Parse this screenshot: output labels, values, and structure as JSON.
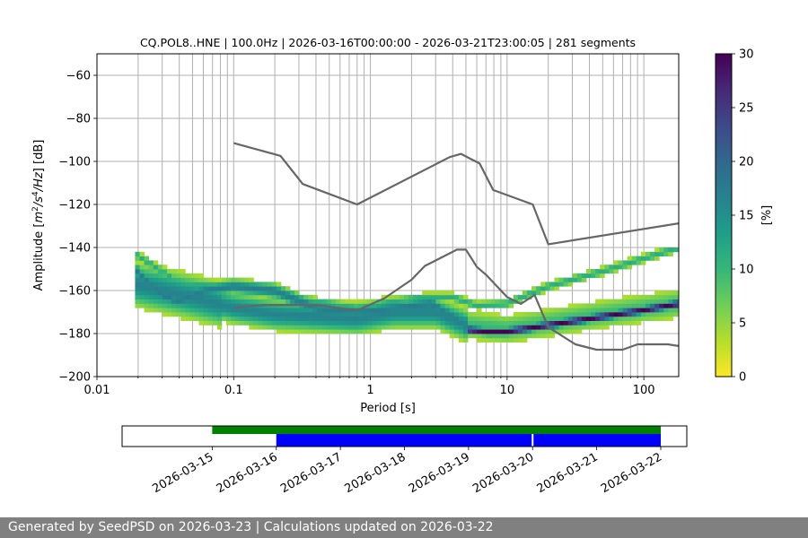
{
  "chart_data": [
    {
      "type": "heatmap",
      "title": "CQ.POL8..HNE | 100.0Hz | 2026-03-16T00:00:00 - 2026-03-21T23:00:05 | 281 segments",
      "xlabel": "Period [s]",
      "ylabel_parts": [
        "Amplitude [",
        "m",
        "2",
        "/",
        "s",
        "4",
        "/",
        "Hz",
        "] [dB]"
      ],
      "xscale": "log",
      "xlim": [
        0.01,
        180
      ],
      "ylim": [
        -200,
        -50
      ],
      "x_ticks": [
        {
          "value": 0.01,
          "label": "0.01"
        },
        {
          "value": 0.1,
          "label": "0.1"
        },
        {
          "value": 1,
          "label": "1"
        },
        {
          "value": 10,
          "label": "10"
        },
        {
          "value": 100,
          "label": "100"
        }
      ],
      "y_ticks": [
        {
          "value": -60,
          "label": "−60"
        },
        {
          "value": -80,
          "label": "−80"
        },
        {
          "value": -100,
          "label": "−100"
        },
        {
          "value": -120,
          "label": "−120"
        },
        {
          "value": -140,
          "label": "−140"
        },
        {
          "value": -160,
          "label": "−160"
        },
        {
          "value": -180,
          "label": "−180"
        },
        {
          "value": -200,
          "label": "−200"
        }
      ],
      "grid": true,
      "colorbar": {
        "label": "[%]",
        "range": [
          0,
          30
        ],
        "colormap": "viridis_r",
        "ticks": [
          {
            "value": 0,
            "label": "0"
          },
          {
            "value": 5,
            "label": "5"
          },
          {
            "value": 10,
            "label": "10"
          },
          {
            "value": 15,
            "label": "15"
          },
          {
            "value": 20,
            "label": "20"
          },
          {
            "value": 25,
            "label": "25"
          },
          {
            "value": 30,
            "label": "30"
          }
        ]
      },
      "noise_models": [
        {
          "points": [
            [
              0.1,
              -91.5
            ],
            [
              0.22,
              -97.4
            ],
            [
              0.32,
              -110.5
            ],
            [
              0.8,
              -120
            ],
            [
              3.8,
              -98
            ],
            [
              4.6,
              -96.5
            ],
            [
              6.3,
              -101
            ],
            [
              7.9,
              -113.3
            ],
            [
              15.4,
              -120
            ],
            [
              20,
              -138.5
            ],
            [
              180,
              -128.8
            ]
          ]
        },
        {
          "points": [
            [
              0.1,
              -168
            ],
            [
              0.17,
              -166.7
            ],
            [
              0.4,
              -166.7
            ],
            [
              0.8,
              -169.2
            ],
            [
              1.26,
              -163.7
            ],
            [
              2,
              -155
            ],
            [
              2.5,
              -148.6
            ],
            [
              4.3,
              -141
            ],
            [
              5,
              -141
            ],
            [
              6,
              -149
            ],
            [
              7.1,
              -153
            ],
            [
              10,
              -163
            ],
            [
              12.6,
              -166.2
            ],
            [
              15.9,
              -162.1
            ],
            [
              20,
              -177
            ],
            [
              31.6,
              -185
            ],
            [
              45,
              -187.5
            ],
            [
              70,
              -187.5
            ],
            [
              90,
              -185
            ],
            [
              150,
              -185
            ],
            [
              180,
              -185.8
            ]
          ]
        }
      ],
      "distribution": {
        "bin_db": 2,
        "columns_per_decade": 30,
        "period_range": [
          0.019,
          180
        ],
        "ridges": [
          {
            "name": "background",
            "points": [
              [
                0.019,
                -157
              ],
              [
                0.05,
                -163
              ],
              [
                0.1,
                -168
              ],
              [
                0.2,
                -171
              ],
              [
                0.4,
                -172
              ],
              [
                0.8,
                -173
              ],
              [
                1.5,
                -170
              ],
              [
                3,
                -170
              ],
              [
                5,
                -176
              ],
              [
                10,
                -178
              ],
              [
                20,
                -175
              ],
              [
                50,
                -171
              ],
              [
                180,
                -166
              ]
            ]
          },
          {
            "name": "primary",
            "points": [
              [
                0.019,
                -150
              ],
              [
                0.025,
                -158
              ],
              [
                0.03,
                -162
              ],
              [
                0.04,
                -165
              ],
              [
                0.06,
                -160
              ],
              [
                0.1,
                -158
              ],
              [
                0.2,
                -160
              ],
              [
                0.4,
                -168
              ],
              [
                0.8,
                -170
              ],
              [
                1.5,
                -168
              ],
              [
                2.8,
                -166
              ],
              [
                4,
                -172
              ],
              [
                5,
                -178
              ],
              [
                7,
                -179
              ],
              [
                10,
                -179
              ],
              [
                20,
                -176
              ],
              [
                50,
                -172
              ],
              [
                100,
                -169
              ],
              [
                180,
                -166
              ]
            ]
          },
          {
            "name": "upper",
            "points": [
              [
                0.019,
                -143
              ],
              [
                0.04,
                -156
              ],
              [
                0.08,
                -158
              ],
              [
                0.2,
                -162
              ],
              [
                0.4,
                -165
              ],
              [
                0.8,
                -168
              ],
              [
                1.5,
                -165
              ],
              [
                2.5,
                -163
              ],
              [
                4,
                -163
              ],
              [
                6,
                -167
              ],
              [
                10,
                -166
              ],
              [
                20,
                -158
              ],
              [
                50,
                -151
              ],
              [
                100,
                -145
              ],
              [
                180,
                -140
              ]
            ]
          }
        ]
      },
      "available_segments": {
        "x_ticks": [
          "2026-03-15",
          "2026-03-16",
          "2026-03-17",
          "2026-03-18",
          "2026-03-19",
          "2026-03-20",
          "2026-03-21",
          "2026-03-22"
        ],
        "xlim": [
          "2026-03-14",
          "2026-03-22"
        ],
        "green_range": [
          "2026-03-15",
          "2026-03-22"
        ],
        "blue_ranges": [
          [
            "2026-03-16",
            "2026-03-20"
          ],
          [
            "2026-03-20",
            "2026-03-22"
          ]
        ],
        "colors": {
          "green": "#008000",
          "blue": "#0000ff"
        }
      }
    }
  ],
  "footer": {
    "text": "Generated by SeedPSD on 2026-03-23 | Calculations updated on 2026-03-22"
  },
  "colors": {
    "noise_model": "#666666",
    "grid": "#b0b0b0",
    "footer_bg": "#808080"
  }
}
